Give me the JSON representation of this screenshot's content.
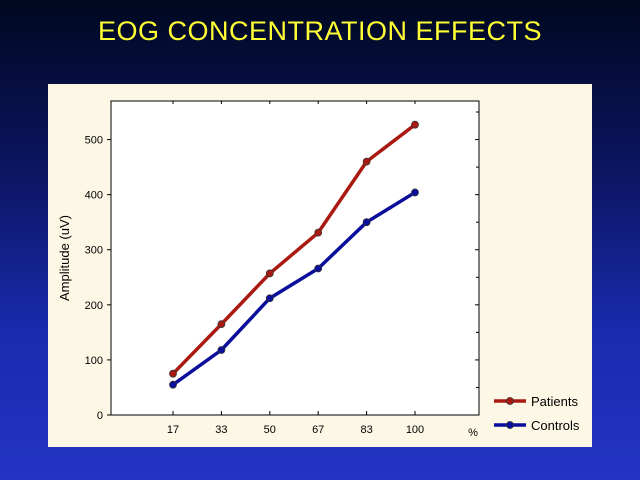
{
  "title": "EOG CONCENTRATION EFFECTS",
  "chart_data": {
    "type": "line",
    "categories": [
      "17",
      "33",
      "50",
      "67",
      "83",
      "100"
    ],
    "series": [
      {
        "name": "Patients",
        "color": "#aa1a12",
        "values": [
          75,
          165,
          257,
          331,
          460,
          527
        ]
      },
      {
        "name": "Controls",
        "color": "#0a0e9a",
        "values": [
          55,
          118,
          212,
          266,
          350,
          404
        ]
      }
    ],
    "xlabel": "%",
    "ylabel": "Amplitude (uV)",
    "yticks": [
      "0",
      "100",
      "200",
      "300",
      "400",
      "500"
    ],
    "ylim": [
      0,
      570
    ],
    "legend_position": "bottom-right",
    "grid": false
  }
}
